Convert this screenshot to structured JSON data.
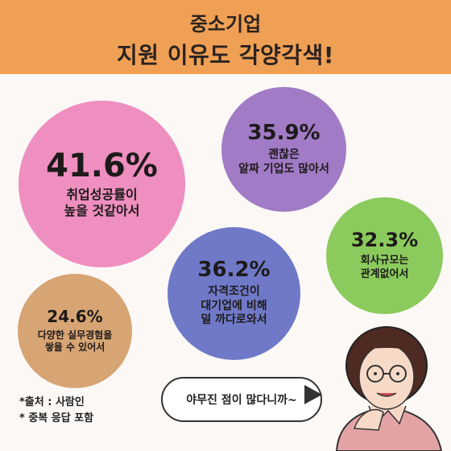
{
  "header": {
    "line1": "중소기업",
    "line2": "지원 이유도 각양각색!"
  },
  "chart_data": {
    "type": "bubble",
    "title": "중소기업 지원 이유도 각양각색!",
    "series": [
      {
        "value_label": "41.6%",
        "value": 41.6,
        "lines": [
          "취업성공률이",
          "높을 것같아서"
        ],
        "color": "#ee8fbf"
      },
      {
        "value_label": "35.9%",
        "value": 35.9,
        "lines": [
          "괜찮은",
          "알짜 기업도 많아서"
        ],
        "color": "#a17bc6"
      },
      {
        "value_label": "32.3%",
        "value": 32.3,
        "lines": [
          "회사규모는",
          "관계없어서"
        ],
        "color": "#8bca5c"
      },
      {
        "value_label": "36.2%",
        "value": 36.2,
        "lines": [
          "자격조건이",
          "대기업에 비해",
          "덜 까다로와서"
        ],
        "color": "#6f79c8"
      },
      {
        "value_label": "24.6%",
        "value": 24.6,
        "lines": [
          "다양한 실무경험을",
          "쌓을 수 있어서"
        ],
        "color": "#d7a473"
      }
    ]
  },
  "notes": {
    "source": "*출처 : 사람인",
    "multiple": "* 중복 응답 포함"
  },
  "speech": {
    "text": "야무진 점이 많다니까~"
  }
}
